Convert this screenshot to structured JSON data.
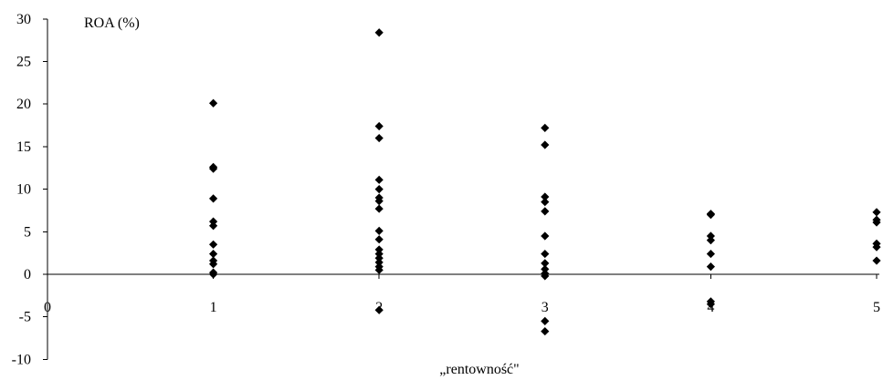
{
  "chart_data": {
    "type": "scatter",
    "title": "",
    "xlabel": "„rentowność\"",
    "ylabel": "ROA (%)",
    "xlim": [
      0,
      5
    ],
    "ylim": [
      -10,
      30
    ],
    "x_ticks": [
      0,
      1,
      2,
      3,
      4,
      5
    ],
    "y_ticks": [
      -10,
      -5,
      0,
      5,
      10,
      15,
      20,
      25,
      30
    ],
    "grid": false,
    "legend": "none",
    "marker": "diamond",
    "marker_color": "#000000",
    "series": [
      {
        "points": [
          {
            "x": 1,
            "y": 20.1
          },
          {
            "x": 1,
            "y": 12.6
          },
          {
            "x": 1,
            "y": 12.4
          },
          {
            "x": 1,
            "y": 8.9
          },
          {
            "x": 1,
            "y": 6.2
          },
          {
            "x": 1,
            "y": 5.7
          },
          {
            "x": 1,
            "y": 3.5
          },
          {
            "x": 1,
            "y": 2.4
          },
          {
            "x": 1,
            "y": 1.6
          },
          {
            "x": 1,
            "y": 1.2
          },
          {
            "x": 1,
            "y": 0.2
          },
          {
            "x": 1,
            "y": 0.0
          },
          {
            "x": 2,
            "y": 28.4
          },
          {
            "x": 2,
            "y": 17.4
          },
          {
            "x": 2,
            "y": 16.0
          },
          {
            "x": 2,
            "y": 11.1
          },
          {
            "x": 2,
            "y": 10.0
          },
          {
            "x": 2,
            "y": 9.0
          },
          {
            "x": 2,
            "y": 8.6
          },
          {
            "x": 2,
            "y": 7.7
          },
          {
            "x": 2,
            "y": 5.1
          },
          {
            "x": 2,
            "y": 4.1
          },
          {
            "x": 2,
            "y": 2.9
          },
          {
            "x": 2,
            "y": 2.4
          },
          {
            "x": 2,
            "y": 1.9
          },
          {
            "x": 2,
            "y": 1.4
          },
          {
            "x": 2,
            "y": 0.9
          },
          {
            "x": 2,
            "y": 0.5
          },
          {
            "x": 2,
            "y": -4.2
          },
          {
            "x": 3,
            "y": 17.2
          },
          {
            "x": 3,
            "y": 15.2
          },
          {
            "x": 3,
            "y": 9.1
          },
          {
            "x": 3,
            "y": 8.5
          },
          {
            "x": 3,
            "y": 7.4
          },
          {
            "x": 3,
            "y": 4.5
          },
          {
            "x": 3,
            "y": 2.4
          },
          {
            "x": 3,
            "y": 1.3
          },
          {
            "x": 3,
            "y": 0.6
          },
          {
            "x": 3,
            "y": 0.1
          },
          {
            "x": 3,
            "y": -0.2
          },
          {
            "x": 3,
            "y": -5.5
          },
          {
            "x": 3,
            "y": -6.7
          },
          {
            "x": 4,
            "y": 7.1
          },
          {
            "x": 4,
            "y": 7.0
          },
          {
            "x": 4,
            "y": 4.5
          },
          {
            "x": 4,
            "y": 4.0
          },
          {
            "x": 4,
            "y": 2.4
          },
          {
            "x": 4,
            "y": 0.9
          },
          {
            "x": 4,
            "y": -3.2
          },
          {
            "x": 4,
            "y": -3.5
          },
          {
            "x": 5,
            "y": 7.3
          },
          {
            "x": 5,
            "y": 6.4
          },
          {
            "x": 5,
            "y": 6.1
          },
          {
            "x": 5,
            "y": 3.6
          },
          {
            "x": 5,
            "y": 3.2
          },
          {
            "x": 5,
            "y": 1.6
          }
        ]
      }
    ]
  }
}
